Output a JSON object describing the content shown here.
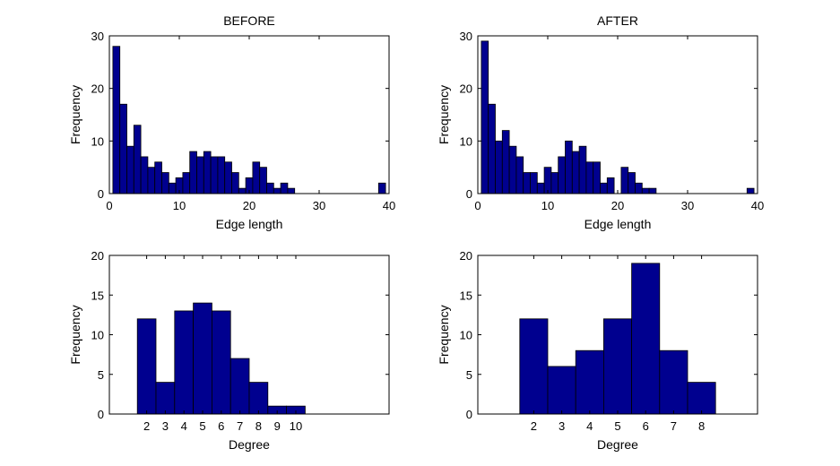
{
  "chart_data": [
    {
      "type": "bar",
      "panel": "top-left",
      "title": "BEFORE",
      "xlabel": "Edge length",
      "ylabel": "Frequency",
      "xlim": [
        0,
        40
      ],
      "ylim": [
        0,
        30
      ],
      "xticks": [
        0,
        10,
        20,
        30,
        40
      ],
      "yticks": [
        0,
        10,
        20,
        30
      ],
      "bin_width": 1,
      "bins": [
        {
          "x": 1,
          "y": 28
        },
        {
          "x": 2,
          "y": 17
        },
        {
          "x": 3,
          "y": 9
        },
        {
          "x": 4,
          "y": 13
        },
        {
          "x": 5,
          "y": 7
        },
        {
          "x": 6,
          "y": 5
        },
        {
          "x": 7,
          "y": 6
        },
        {
          "x": 8,
          "y": 4
        },
        {
          "x": 9,
          "y": 2
        },
        {
          "x": 10,
          "y": 3
        },
        {
          "x": 11,
          "y": 4
        },
        {
          "x": 12,
          "y": 8
        },
        {
          "x": 13,
          "y": 7
        },
        {
          "x": 14,
          "y": 8
        },
        {
          "x": 15,
          "y": 7
        },
        {
          "x": 16,
          "y": 7
        },
        {
          "x": 17,
          "y": 6
        },
        {
          "x": 18,
          "y": 4
        },
        {
          "x": 19,
          "y": 1
        },
        {
          "x": 20,
          "y": 3
        },
        {
          "x": 21,
          "y": 6
        },
        {
          "x": 22,
          "y": 5
        },
        {
          "x": 23,
          "y": 2
        },
        {
          "x": 24,
          "y": 1
        },
        {
          "x": 25,
          "y": 2
        },
        {
          "x": 26,
          "y": 1
        },
        {
          "x": 39,
          "y": 2
        }
      ]
    },
    {
      "type": "bar",
      "panel": "top-right",
      "title": "AFTER",
      "xlabel": "Edge length",
      "ylabel": "Frequency",
      "xlim": [
        0,
        40
      ],
      "ylim": [
        0,
        30
      ],
      "xticks": [
        0,
        10,
        20,
        30,
        40
      ],
      "yticks": [
        0,
        10,
        20,
        30
      ],
      "bin_width": 1,
      "bins": [
        {
          "x": 1,
          "y": 29
        },
        {
          "x": 2,
          "y": 17
        },
        {
          "x": 3,
          "y": 10
        },
        {
          "x": 4,
          "y": 12
        },
        {
          "x": 5,
          "y": 9
        },
        {
          "x": 6,
          "y": 7
        },
        {
          "x": 7,
          "y": 4
        },
        {
          "x": 8,
          "y": 4
        },
        {
          "x": 9,
          "y": 2
        },
        {
          "x": 10,
          "y": 5
        },
        {
          "x": 11,
          "y": 4
        },
        {
          "x": 12,
          "y": 7
        },
        {
          "x": 13,
          "y": 10
        },
        {
          "x": 14,
          "y": 8
        },
        {
          "x": 15,
          "y": 9
        },
        {
          "x": 16,
          "y": 6
        },
        {
          "x": 17,
          "y": 6
        },
        {
          "x": 18,
          "y": 2
        },
        {
          "x": 19,
          "y": 3
        },
        {
          "x": 21,
          "y": 5
        },
        {
          "x": 22,
          "y": 4
        },
        {
          "x": 23,
          "y": 2
        },
        {
          "x": 24,
          "y": 1
        },
        {
          "x": 25,
          "y": 1
        },
        {
          "x": 39,
          "y": 1
        }
      ]
    },
    {
      "type": "bar",
      "panel": "bottom-left",
      "title": "",
      "xlabel": "Degree",
      "ylabel": "Frequency",
      "xlim": [
        0,
        15
      ],
      "ylim": [
        0,
        20
      ],
      "xticks": [
        2,
        3,
        4,
        5,
        6,
        7,
        8,
        9,
        10
      ],
      "yticks": [
        0,
        5,
        10,
        15,
        20
      ],
      "bin_width": 1,
      "bins": [
        {
          "x": 2,
          "y": 12
        },
        {
          "x": 3,
          "y": 4
        },
        {
          "x": 4,
          "y": 13
        },
        {
          "x": 5,
          "y": 14
        },
        {
          "x": 6,
          "y": 13
        },
        {
          "x": 7,
          "y": 7
        },
        {
          "x": 8,
          "y": 4
        },
        {
          "x": 9,
          "y": 1
        },
        {
          "x": 10,
          "y": 1
        }
      ]
    },
    {
      "type": "bar",
      "panel": "bottom-right",
      "title": "",
      "xlabel": "Degree",
      "ylabel": "Frequency",
      "xlim": [
        0,
        10
      ],
      "ylim": [
        0,
        20
      ],
      "xticks": [
        2,
        3,
        4,
        5,
        6,
        7,
        8
      ],
      "yticks": [
        0,
        5,
        10,
        15,
        20
      ],
      "bin_width": 1,
      "bins": [
        {
          "x": 2,
          "y": 12
        },
        {
          "x": 3,
          "y": 6
        },
        {
          "x": 4,
          "y": 8
        },
        {
          "x": 5,
          "y": 12
        },
        {
          "x": 6,
          "y": 19
        },
        {
          "x": 7,
          "y": 8
        },
        {
          "x": 8,
          "y": 4
        }
      ]
    }
  ],
  "colors": {
    "bar_fill": "#00008f",
    "bar_edge": "#000000",
    "axes": "#000000",
    "background": "#ffffff"
  }
}
